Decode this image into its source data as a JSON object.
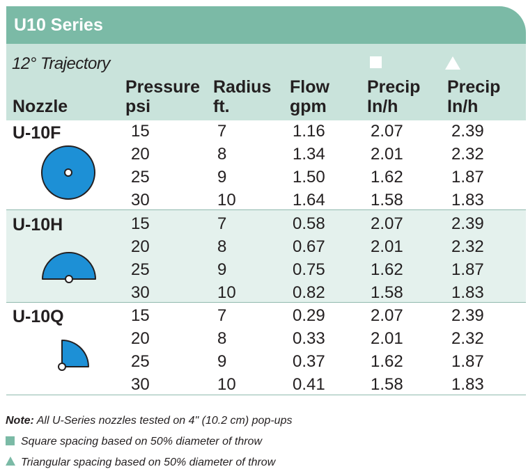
{
  "title": "U10 Series",
  "trajectory": "12° Trajectory",
  "columns": {
    "nozzle": "Nozzle",
    "pressure": [
      "Pressure",
      "psi"
    ],
    "radius": [
      "Radius",
      "ft."
    ],
    "flow": [
      "Flow",
      "gpm"
    ],
    "precip_square": [
      "Precip",
      "In/h"
    ],
    "precip_triangle": [
      "Precip",
      "In/h"
    ]
  },
  "nozzles": [
    {
      "name": "U-10F",
      "icon": "full-circle-nozzle-icon",
      "rows": [
        [
          "15",
          "7",
          "1.16",
          "2.07",
          "2.39"
        ],
        [
          "20",
          "8",
          "1.34",
          "2.01",
          "2.32"
        ],
        [
          "25",
          "9",
          "1.50",
          "1.62",
          "1.87"
        ],
        [
          "30",
          "10",
          "1.64",
          "1.58",
          "1.83"
        ]
      ]
    },
    {
      "name": "U-10H",
      "icon": "half-circle-nozzle-icon",
      "rows": [
        [
          "15",
          "7",
          "0.58",
          "2.07",
          "2.39"
        ],
        [
          "20",
          "8",
          "0.67",
          "2.01",
          "2.32"
        ],
        [
          "25",
          "9",
          "0.75",
          "1.62",
          "1.87"
        ],
        [
          "30",
          "10",
          "0.82",
          "1.58",
          "1.83"
        ]
      ]
    },
    {
      "name": "U-10Q",
      "icon": "quarter-circle-nozzle-icon",
      "rows": [
        [
          "15",
          "7",
          "0.29",
          "2.07",
          "2.39"
        ],
        [
          "20",
          "8",
          "0.33",
          "2.01",
          "2.32"
        ],
        [
          "25",
          "9",
          "0.37",
          "1.62",
          "1.87"
        ],
        [
          "30",
          "10",
          "0.41",
          "1.58",
          "1.83"
        ]
      ]
    }
  ],
  "notes": {
    "label": "Note:",
    "text": " All U-Series nozzles tested on 4\" (10.2 cm)  pop-ups",
    "square": "Square spacing based on 50% diameter of throw",
    "triangle": "Triangular spacing based on 50% diameter of throw"
  },
  "colors": {
    "header": "#7bbaa6",
    "band": "#c9e3db",
    "nozzle_fill": "#1d90d6",
    "text": "#231f20"
  }
}
